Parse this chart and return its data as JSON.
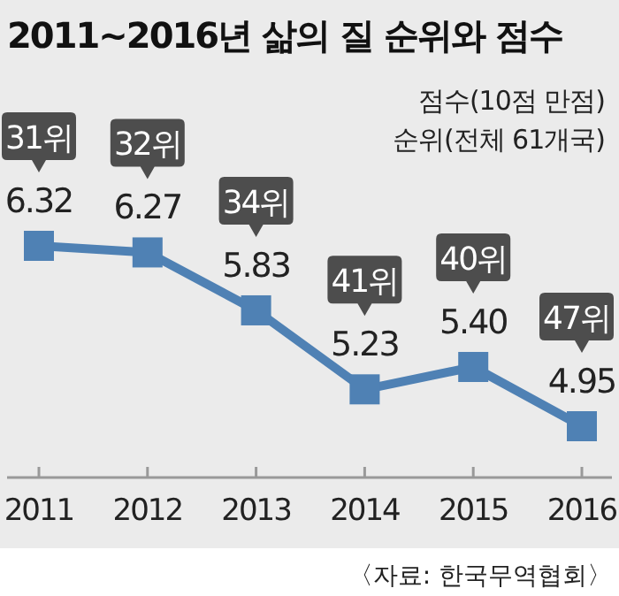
{
  "chart_data": {
    "type": "line",
    "title": "2011~2016년 삶의 질 순위와 점수",
    "categories": [
      "2011",
      "2012",
      "2013",
      "2014",
      "2015",
      "2016"
    ],
    "series": [
      {
        "color": "#4f81b4",
        "values": [
          6.32,
          6.27,
          5.83,
          5.23,
          5.4,
          4.95
        ],
        "value_labels": [
          "6.32",
          "6.27",
          "5.83",
          "5.23",
          "5.40",
          "4.95"
        ]
      }
    ],
    "marker": "square",
    "annotations": [
      "점수(10점 만점)",
      "순위(전체 61개국)",
      {
        "text": "31위",
        "x": "2011",
        "y": 6.32
      },
      {
        "text": "32위",
        "x": "2012",
        "y": 6.27
      },
      {
        "text": "34위",
        "x": "2013",
        "y": 5.83
      },
      {
        "text": "41위",
        "x": "2014",
        "y": 5.23
      },
      {
        "text": "40위",
        "x": "2015",
        "y": 5.4
      },
      {
        "text": "47위",
        "x": "2016",
        "y": 4.95
      },
      "〈자료: 한국무역협회〉"
    ]
  }
}
